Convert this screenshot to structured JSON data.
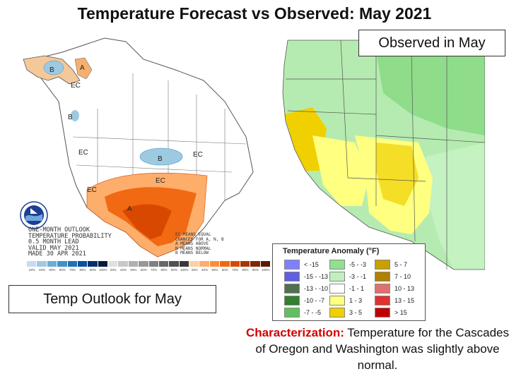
{
  "title": "Temperature Forecast vs Observed: May 2021",
  "observed_label": "Observed in May",
  "outlook_label": "Temp Outlook for May",
  "outlook_map": {
    "text_lines": [
      "ONE-MONTH OUTLOOK",
      "TEMPERATURE PROBABILITY",
      "0.5 MONTH LEAD",
      "VALID MAY 2021",
      "MADE 30 APR 2021"
    ],
    "prob_lines": [
      "EC MEANS EQUAL",
      "CHANCES FOR A, N, B",
      "A MEANS ABOVE",
      "N MEANS NORMAL",
      "B MEANS BELOW"
    ],
    "map_labels": {
      "B": "B",
      "A": "A",
      "EC": "EC"
    },
    "scale_labels": [
      "33%",
      "40%",
      "50%",
      "60%",
      "70%",
      "80%",
      "90%",
      "100%",
      "33%",
      "40%",
      "50%",
      "60%",
      "70%",
      "80%",
      "90%",
      "100%",
      "33%",
      "40%",
      "50%",
      "60%",
      "70%",
      "80%",
      "90%",
      "100%"
    ],
    "colors": {
      "below": [
        "#c6dbef",
        "#9ecae1",
        "#6baed6",
        "#4292c6",
        "#2171b5",
        "#08519c",
        "#08306b",
        "#061a40"
      ],
      "normal": [
        "#e0e0e0",
        "#c8c8c8",
        "#b0b0b0",
        "#989898",
        "#808080",
        "#686868",
        "#505050",
        "#383838"
      ],
      "above": [
        "#fdd0a2",
        "#fdae6b",
        "#fd8d3c",
        "#f16913",
        "#d94801",
        "#a63603",
        "#7f2704",
        "#5a1a02"
      ]
    }
  },
  "legend": {
    "title": "Temperature Anomaly (°F)",
    "items": [
      {
        "label": "< -15",
        "color": "#8080ff"
      },
      {
        "label": "-5 - -3",
        "color": "#90e090"
      },
      {
        "label": "5 - 7",
        "color": "#c8a000"
      },
      {
        "label": "-15 - -13",
        "color": "#6060e0"
      },
      {
        "label": "-3 - -1",
        "color": "#c0f0c0"
      },
      {
        "label": "7 - 10",
        "color": "#b08000"
      },
      {
        "label": "-13 - -10",
        "color": "#507050"
      },
      {
        "label": "-1 - 1",
        "color": "#ffffff"
      },
      {
        "label": "10 - 13",
        "color": "#e07070"
      },
      {
        "label": "-10 - -7",
        "color": "#308030"
      },
      {
        "label": "1 - 3",
        "color": "#ffff80"
      },
      {
        "label": "13 - 15",
        "color": "#e03030"
      },
      {
        "label": "-7 - -5",
        "color": "#60c060"
      },
      {
        "label": "3 - 5",
        "color": "#f0d000"
      },
      {
        "label": "> 15",
        "color": "#c00000"
      }
    ]
  },
  "caption": {
    "prefix": "Characterization:",
    "text": " Temperature for the Cascades of Oregon and Washington was slightly  above normal."
  }
}
